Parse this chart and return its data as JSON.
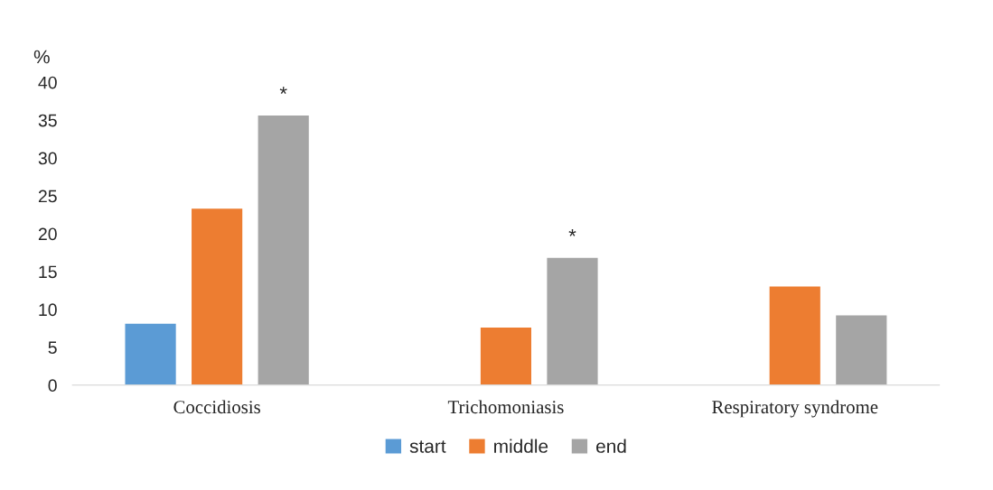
{
  "chart_data": {
    "type": "bar",
    "ylabel": "%",
    "categories": [
      "Coccidiosis",
      "Trichomoniasis",
      "Respiratory syndrome"
    ],
    "series": [
      {
        "name": "start",
        "color": "#5b9bd5",
        "values": [
          8.2,
          null,
          null
        ]
      },
      {
        "name": "middle",
        "color": "#ed7d31",
        "values": [
          23.4,
          7.7,
          13.1
        ]
      },
      {
        "name": "end",
        "color": "#a5a5a5",
        "values": [
          35.7,
          16.9,
          9.3
        ]
      }
    ],
    "ylim": [
      0,
      40
    ],
    "yticks": [
      0,
      5,
      10,
      15,
      20,
      25,
      30,
      35,
      40
    ],
    "grid": false,
    "legend": "bottom",
    "annotations": [
      "*",
      "*"
    ]
  }
}
